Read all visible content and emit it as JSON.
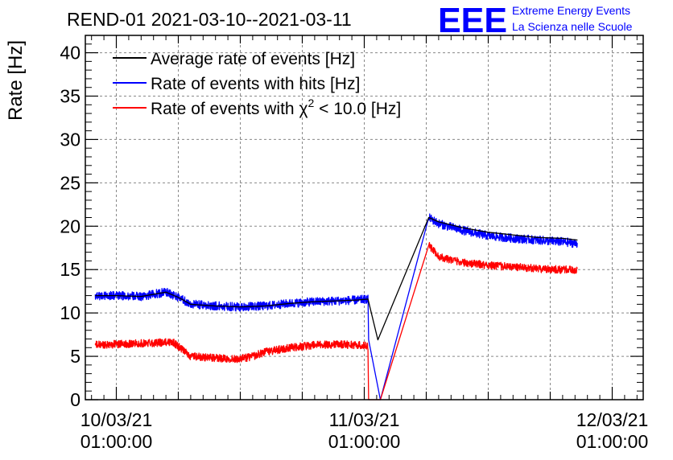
{
  "chart_data": {
    "type": "line",
    "title": "REND-01 2021-03-10--2021-03-11",
    "ylabel": "Rate [Hz]",
    "xlabel": "",
    "ylim": [
      0,
      42
    ],
    "xlim_hours": [
      -2.5,
      42.5
    ],
    "yticks": [
      0,
      5,
      10,
      15,
      20,
      25,
      30,
      35,
      40
    ],
    "xticks": [
      {
        "hour": 0,
        "date": "10/03/21",
        "time": "01:00:00"
      },
      {
        "hour": 20,
        "date": "11/03/21",
        "time": "01:00:00"
      },
      {
        "hour": 40,
        "date": "12/03/21",
        "time": "01:00:00"
      }
    ],
    "grid": true,
    "legend_position": "top-left",
    "series": [
      {
        "name": "Average rate of events [Hz]",
        "color": "#000000",
        "x_hours": [
          -1.7,
          0,
          2,
          4,
          5,
          6,
          8,
          10,
          12,
          14,
          16,
          18,
          19.5,
          20.3,
          21.1,
          25.2,
          26,
          28,
          30,
          32,
          34,
          36,
          37.2
        ],
        "values": [
          12.0,
          12.0,
          11.9,
          12.4,
          11.8,
          11.0,
          10.8,
          10.7,
          10.8,
          11.1,
          11.3,
          11.4,
          11.5,
          11.6,
          6.9,
          21.0,
          20.5,
          19.8,
          19.3,
          19.0,
          18.7,
          18.6,
          18.4
        ]
      },
      {
        "name": "Rate of events with hits [Hz]",
        "color": "#0000ff",
        "x_hours": [
          -1.7,
          0,
          2,
          4,
          5,
          6,
          8,
          10,
          12,
          14,
          16,
          18,
          19.5,
          20.3,
          20.35,
          21.3,
          25.2,
          26,
          28,
          30,
          32,
          34,
          36,
          37.2
        ],
        "values": [
          12.0,
          12.0,
          11.9,
          12.4,
          11.8,
          11.0,
          10.8,
          10.7,
          10.8,
          11.1,
          11.3,
          11.4,
          11.5,
          11.6,
          6.9,
          0.0,
          21.0,
          20.3,
          19.5,
          18.9,
          18.6,
          18.4,
          18.2,
          18.0
        ],
        "noise": 0.5
      },
      {
        "name": "Rate of events with χ² < 10.0 [Hz]",
        "color": "#ff0000",
        "x_hours": [
          -1.7,
          0,
          2,
          4,
          4.5,
          6,
          8,
          10,
          11,
          12,
          14,
          16,
          18,
          19.5,
          20.3,
          20.35,
          21.3,
          25.2,
          26,
          28,
          30,
          32,
          34,
          36,
          37.2
        ],
        "values": [
          6.3,
          6.4,
          6.5,
          6.6,
          6.7,
          5.0,
          4.8,
          4.7,
          5.0,
          5.5,
          6.0,
          6.3,
          6.4,
          6.3,
          6.2,
          0.0,
          0.0,
          17.8,
          16.5,
          15.8,
          15.5,
          15.3,
          15.1,
          15.0,
          14.9
        ],
        "noise": 0.45
      }
    ]
  },
  "legend": {
    "entries": [
      {
        "prefix": "Average rate of events [Hz]",
        "color": "#000000"
      },
      {
        "prefix": "Rate of events with hits [Hz]",
        "color": "#0000ff"
      },
      {
        "prefix": "Rate of events with ",
        "chi": "χ",
        "sup": "2",
        "suffix": " < 10.0 [Hz]",
        "color": "#ff0000"
      }
    ]
  },
  "logo": {
    "mark": "EEE",
    "line1": "Extreme Energy Events",
    "line2": "La Scienza nelle Scuole",
    "color": "#0000ff"
  }
}
